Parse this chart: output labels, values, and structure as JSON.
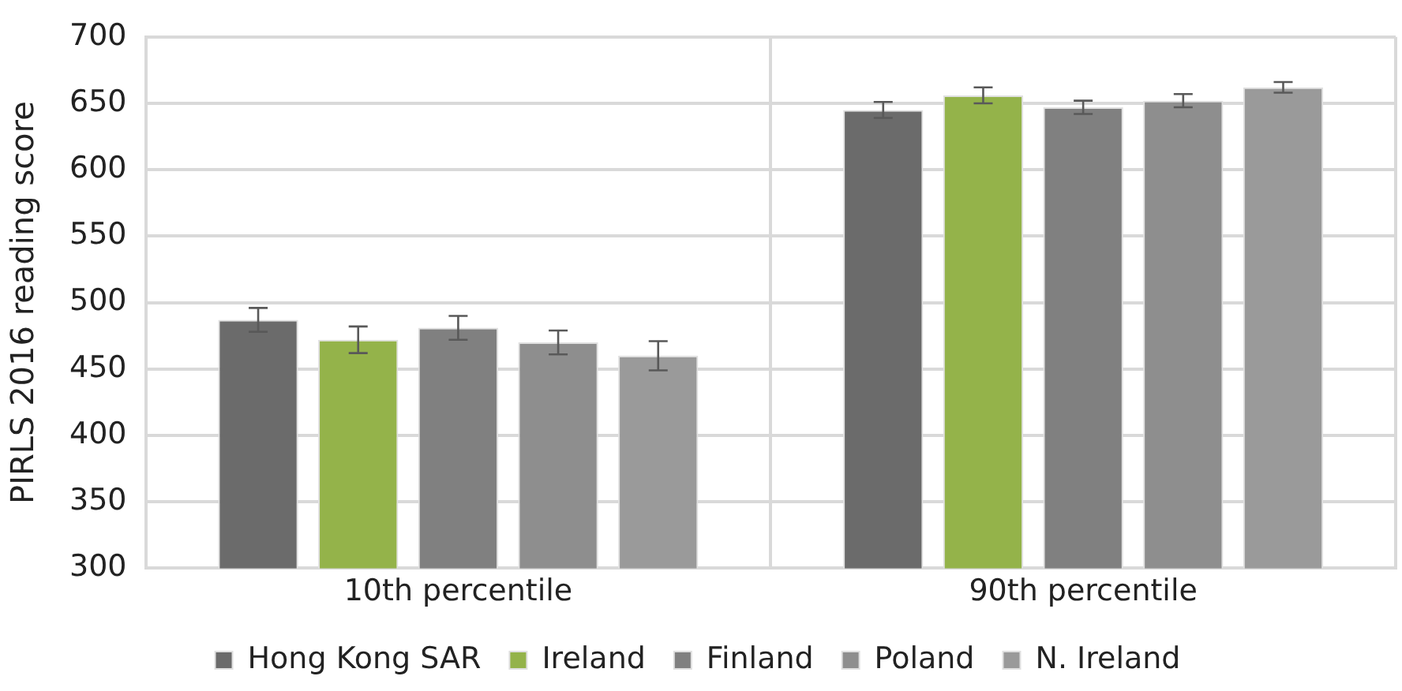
{
  "chart_data": {
    "type": "bar",
    "ylabel": "PIRLS 2016 reading score",
    "categories": [
      "10th percentile",
      "90th percentile"
    ],
    "series": [
      {
        "name": "Hong Kong SAR",
        "color": "#6b6b6b",
        "values": [
          487,
          645
        ],
        "errors": [
          9,
          6
        ]
      },
      {
        "name": "Ireland",
        "color": "#94b34a",
        "values": [
          472,
          656
        ],
        "errors": [
          10,
          6
        ]
      },
      {
        "name": "Finland",
        "color": "#808080",
        "values": [
          481,
          647
        ],
        "errors": [
          9,
          5
        ]
      },
      {
        "name": "Poland",
        "color": "#8e8e8e",
        "values": [
          470,
          652
        ],
        "errors": [
          9,
          5
        ]
      },
      {
        "name": "N. Ireland",
        "color": "#9a9a9a",
        "values": [
          460,
          662
        ],
        "errors": [
          11,
          4
        ]
      }
    ],
    "ylim": [
      300,
      700
    ],
    "yticks": [
      300,
      350,
      400,
      450,
      500,
      550,
      600,
      650,
      700
    ],
    "grid": true,
    "legend": "bottom"
  }
}
